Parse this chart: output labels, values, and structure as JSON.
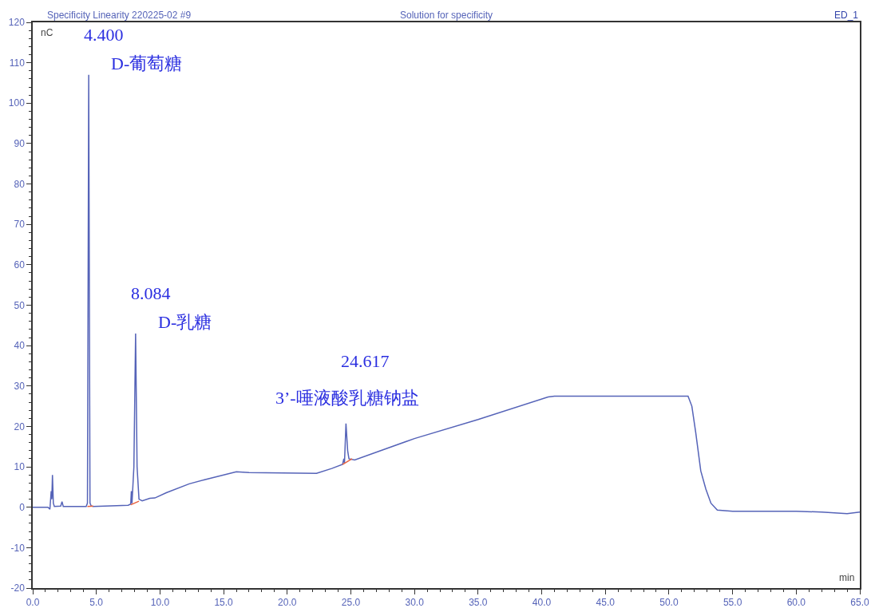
{
  "chart_data": {
    "type": "line",
    "title": "Specificity Linearity 220225-02 #9",
    "subtitle": "Solution for specificity",
    "xlabel": "min",
    "ylabel": "nC",
    "annotations": [
      "ED_1",
      {
        "text": "4.400",
        "x": 4.4,
        "y": 107
      },
      {
        "text": "D-葡萄糖",
        "x": 4.4,
        "y": 107
      },
      {
        "text": "8.084",
        "x": 8.084,
        "y": 43
      },
      {
        "text": "D-乳糖",
        "x": 8.084,
        "y": 43
      },
      {
        "text": "24.617",
        "x": 24.617,
        "y": 20.7
      },
      {
        "text": "3’-唾液酸乳糖钠盐",
        "x": 24.617,
        "y": 20.7
      }
    ],
    "xlim": [
      0,
      65
    ],
    "ylim": [
      -20,
      120
    ],
    "xticks": [
      {
        "value": 0,
        "label": "0.0"
      },
      {
        "value": 5,
        "label": "5.0"
      },
      {
        "value": 10,
        "label": "10.0"
      },
      {
        "value": 15,
        "label": "15.0"
      },
      {
        "value": 20,
        "label": "20.0"
      },
      {
        "value": 25,
        "label": "25.0"
      },
      {
        "value": 30,
        "label": "30.0"
      },
      {
        "value": 35,
        "label": "35.0"
      },
      {
        "value": 40,
        "label": "40.0"
      },
      {
        "value": 45,
        "label": "45.0"
      },
      {
        "value": 50,
        "label": "50.0"
      },
      {
        "value": 55,
        "label": "55.0"
      },
      {
        "value": 60,
        "label": "60.0"
      },
      {
        "value": 65,
        "label": "65.0"
      }
    ],
    "yticks": [
      -20,
      -10,
      0,
      10,
      20,
      30,
      40,
      50,
      60,
      70,
      80,
      90,
      100,
      110,
      120
    ],
    "series": [
      {
        "color": "#5563b8",
        "x": [
          0,
          1.2,
          1.35,
          1.45,
          1.5,
          1.55,
          1.62,
          1.7,
          2.2,
          2.3,
          2.4,
          4.2,
          4.3,
          4.4,
          4.5,
          4.6,
          4.75,
          7.5,
          7.7,
          7.75,
          7.8,
          7.95,
          8.084,
          8.2,
          8.35,
          8.6,
          9.2,
          9.6,
          10.5,
          12.3,
          13.5,
          16,
          17,
          22.3,
          23.5,
          24.35,
          24.45,
          24.5,
          24.617,
          24.75,
          24.85,
          25.3,
          30,
          35,
          40.5,
          41,
          51.5,
          51.8,
          52.1,
          52.5,
          52.9,
          53.3,
          53.8,
          55,
          60,
          62,
          64,
          65
        ],
        "values": [
          0,
          0,
          -0.5,
          4,
          2,
          8,
          1,
          0.2,
          0.3,
          1.4,
          0.2,
          0.2,
          1,
          107,
          1,
          0.3,
          0.2,
          0.5,
          0.8,
          4,
          1,
          10,
          43,
          10,
          2,
          1.6,
          2.2,
          2.3,
          3.6,
          5.8,
          6.8,
          8.8,
          8.6,
          8.4,
          9.6,
          10.6,
          12,
          11,
          20.7,
          14,
          12,
          11.7,
          17,
          21.7,
          27.3,
          27.5,
          27.5,
          25,
          18.6,
          9,
          4.5,
          1,
          -0.7,
          -1,
          -1,
          -1.2,
          -1.6,
          -1.2
        ]
      },
      {
        "color": "#e8603c",
        "x": [
          4.3,
          4.75
        ],
        "values": [
          0.2,
          0.3
        ]
      },
      {
        "color": "#e8603c",
        "x": [
          7.7,
          8.35
        ],
        "values": [
          0.6,
          1.5
        ]
      },
      {
        "color": "#e8603c",
        "x": [
          24.35,
          25.1
        ],
        "values": [
          10.6,
          12
        ]
      }
    ]
  }
}
